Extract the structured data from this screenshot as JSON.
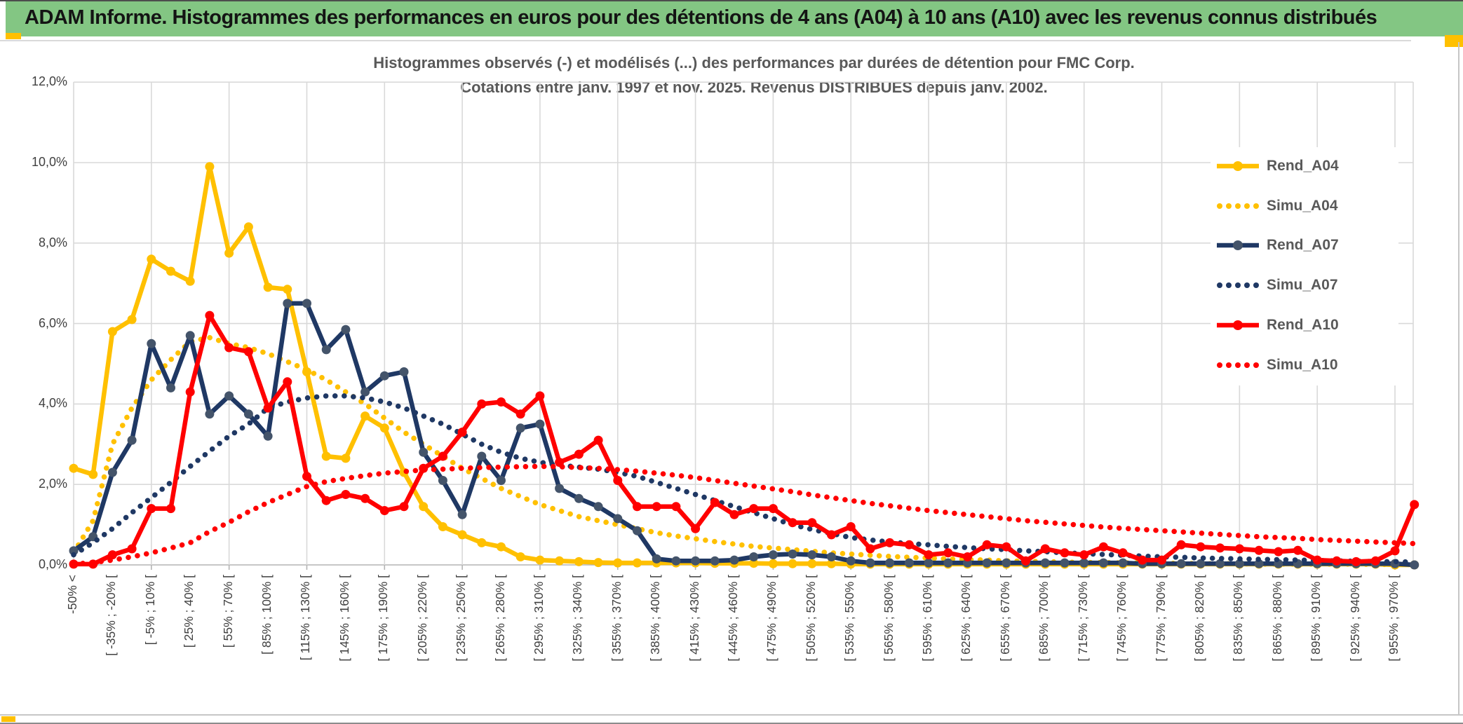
{
  "banner": {
    "title": "ADAM Informe. Histogrammes des performances en euros pour des détentions de 4 ans (A04) à 10 ans (A10) avec les revenus connus distribués",
    "bg_color": "#83C683",
    "accent_color": "#FFC000"
  },
  "chart": {
    "title_line1": "Histogrammes observés (-) et modélisés (...) des performances par durées de détention pour FMC Corp.",
    "title_line2": "Cotations entre janv. 1997 et nov. 2025. Revenus DISTRIBUES depuis janv. 2002."
  },
  "legend": {
    "items": [
      {
        "label": "Rend_A04",
        "color": "#FFC000",
        "marker_color": "#FFC000",
        "style": "solid"
      },
      {
        "label": "Simu_A04",
        "color": "#FFC000",
        "marker_color": "#FFC000",
        "style": "dotted"
      },
      {
        "label": "Rend_A07",
        "color": "#1F3864",
        "marker_color": "#44546A",
        "style": "solid"
      },
      {
        "label": "Simu_A07",
        "color": "#1F3864",
        "marker_color": "#1F3864",
        "style": "dotted"
      },
      {
        "label": "Rend_A10",
        "color": "#FF0000",
        "marker_color": "#FF0000",
        "style": "solid"
      },
      {
        "label": "Simu_A10",
        "color": "#FF0000",
        "marker_color": "#FF0000",
        "style": "dotted"
      }
    ]
  },
  "chart_data": {
    "type": "line",
    "title": "Histogrammes observés (-) et modélisés (...) des performances par durées de détention pour FMC Corp. Cotations entre janv. 1997 et nov. 2025. Revenus DISTRIBUES depuis janv. 2002.",
    "xlabel": "",
    "ylabel": "",
    "ylim": [
      0,
      12
    ],
    "y_tick_step": 2,
    "y_tick_labels": [
      "12,0%",
      "10,0%",
      "8,0%",
      "6,0%",
      "4,0%",
      "2,0%",
      "0,0%"
    ],
    "grid": true,
    "legend_position": "right-inside",
    "n_points": 70,
    "x_label_every_n_bins": 2,
    "x_tick_labels": [
      "-50% <",
      "[ -35% ; -20% [",
      "[ -5% ; 10% [",
      "[ 25% ; 40% [",
      "[ 55% ; 70% [",
      "[ 85% ; 100% [",
      "[ 115% ; 130% [",
      "[ 145% ; 160% [",
      "[ 175% ; 190% [",
      "[ 205% ; 220% [",
      "[ 235% ; 250% [",
      "[ 265% ; 280% [",
      "[ 295% ; 310% [",
      "[ 325% ; 340% [",
      "[ 355% ; 370% [",
      "[ 385% ; 400% [",
      "[ 415% ; 430% [",
      "[ 445% ; 460% [",
      "[ 475% ; 490% [",
      "[ 505% ; 520% [",
      "[ 535% ; 550% [",
      "[ 565% ; 580% [",
      "[ 595% ; 610% [",
      "[ 625% ; 640% [",
      "[ 655% ; 670% [",
      "[ 685% ; 700% [",
      "[ 715% ; 730% [",
      "[ 745% ; 760% [",
      "[ 775% ; 790% [",
      "[ 805% ; 820% [",
      "[ 835% ; 850% [",
      "[ 865% ; 880% [",
      "[ 895% ; 910% [",
      "[ 925% ; 940% [",
      "[ 955% ; 970% ["
    ],
    "series": [
      {
        "name": "Rend_A04",
        "style": "solid",
        "color": "#FFC000",
        "marker_color": "#FFC000",
        "values": [
          2.4,
          2.25,
          5.8,
          6.1,
          7.6,
          7.3,
          7.05,
          9.9,
          7.75,
          8.4,
          6.9,
          6.85,
          4.8,
          2.7,
          2.65,
          3.7,
          3.4,
          2.3,
          1.45,
          0.95,
          0.75,
          0.55,
          0.45,
          0.2,
          0.12,
          0.1,
          0.08,
          0.06,
          0.05,
          0.05,
          0.05,
          0.05,
          0.05,
          0.04,
          0.04,
          0.04,
          0.03,
          0.03,
          0.03,
          0.03,
          0.02,
          0.02,
          0.02,
          0.02,
          0.02,
          0.02,
          0.02,
          0.02,
          0.02,
          0.02,
          0.02,
          0.02,
          0.02,
          0.02,
          0.02,
          0.02,
          0.02,
          0.02,
          0.02,
          0.02,
          0.02,
          0.02,
          0.02,
          0.02,
          0.02,
          0.02,
          0.02,
          0.02,
          0,
          0
        ]
      },
      {
        "name": "Simu_A04",
        "style": "dotted",
        "color": "#FFC000",
        "values": [
          0.3,
          1.1,
          3.0,
          3.9,
          4.6,
          5.1,
          5.55,
          5.65,
          5.5,
          5.4,
          5.25,
          5.05,
          4.85,
          4.6,
          4.3,
          4.0,
          3.65,
          3.3,
          3.0,
          2.7,
          2.4,
          2.15,
          1.9,
          1.7,
          1.5,
          1.35,
          1.2,
          1.1,
          1.0,
          0.9,
          0.8,
          0.72,
          0.65,
          0.58,
          0.52,
          0.46,
          0.42,
          0.38,
          0.34,
          0.3,
          0.27,
          0.24,
          0.21,
          0.19,
          0.17,
          0.15,
          0.13,
          0.12,
          0.1,
          0.09,
          0.08,
          0.07,
          0.06,
          0.06,
          0.05,
          0.05,
          0.04,
          0.04,
          0.03,
          0.03,
          0.03,
          0.02,
          0.02,
          0.02,
          0.02,
          0.02,
          0.02,
          0.01,
          0.01,
          0.01
        ]
      },
      {
        "name": "Rend_A07",
        "style": "solid",
        "color": "#1F3864",
        "marker_color": "#44546A",
        "values": [
          0.35,
          0.7,
          2.3,
          3.1,
          5.5,
          4.4,
          5.7,
          3.75,
          4.2,
          3.75,
          3.2,
          6.5,
          6.5,
          5.35,
          5.85,
          4.3,
          4.7,
          4.8,
          2.8,
          2.1,
          1.25,
          2.7,
          2.1,
          3.4,
          3.5,
          1.9,
          1.65,
          1.45,
          1.15,
          0.85,
          0.15,
          0.1,
          0.1,
          0.1,
          0.12,
          0.2,
          0.25,
          0.27,
          0.25,
          0.2,
          0.1,
          0.05,
          0.05,
          0.05,
          0.05,
          0.05,
          0.05,
          0.05,
          0.05,
          0.05,
          0.05,
          0.05,
          0.05,
          0.05,
          0.05,
          0.03,
          0.03,
          0.03,
          0.03,
          0.03,
          0.03,
          0.03,
          0.03,
          0.03,
          0.03,
          0.03,
          0.03,
          0.03,
          0.03,
          0
        ]
      },
      {
        "name": "Simu_A07",
        "style": "dotted",
        "color": "#1F3864",
        "values": [
          0.25,
          0.55,
          0.9,
          1.3,
          1.67,
          2.05,
          2.45,
          2.83,
          3.2,
          3.5,
          3.9,
          4.05,
          4.15,
          4.2,
          4.2,
          4.15,
          4.05,
          3.9,
          3.7,
          3.5,
          3.25,
          3.0,
          2.8,
          2.65,
          2.55,
          2.48,
          2.43,
          2.38,
          2.3,
          2.2,
          2.05,
          1.9,
          1.75,
          1.6,
          1.45,
          1.3,
          1.15,
          1.0,
          0.88,
          0.78,
          0.68,
          0.62,
          0.57,
          0.53,
          0.5,
          0.46,
          0.43,
          0.4,
          0.38,
          0.35,
          0.33,
          0.3,
          0.28,
          0.26,
          0.24,
          0.22,
          0.2,
          0.19,
          0.17,
          0.16,
          0.15,
          0.14,
          0.13,
          0.12,
          0.11,
          0.1,
          0.09,
          0.08,
          0.08,
          0.07
        ]
      },
      {
        "name": "Rend_A10",
        "style": "solid",
        "color": "#FF0000",
        "marker_color": "#FF0000",
        "values": [
          0.02,
          0.02,
          0.25,
          0.4,
          1.4,
          1.4,
          4.3,
          6.2,
          5.4,
          5.3,
          3.9,
          4.55,
          2.2,
          1.6,
          1.75,
          1.65,
          1.35,
          1.45,
          2.4,
          2.7,
          3.3,
          4.0,
          4.05,
          3.75,
          4.2,
          2.55,
          2.75,
          3.1,
          2.1,
          1.45,
          1.45,
          1.45,
          0.9,
          1.55,
          1.25,
          1.4,
          1.4,
          1.05,
          1.05,
          0.75,
          0.95,
          0.4,
          0.55,
          0.5,
          0.25,
          0.3,
          0.2,
          0.5,
          0.45,
          0.1,
          0.4,
          0.3,
          0.25,
          0.45,
          0.3,
          0.12,
          0.12,
          0.5,
          0.45,
          0.42,
          0.4,
          0.36,
          0.33,
          0.36,
          0.12,
          0.1,
          0.08,
          0.1,
          0.35,
          1.5
        ]
      },
      {
        "name": "Simu_A10",
        "style": "dotted",
        "color": "#FF0000",
        "values": [
          0.02,
          0.06,
          0.12,
          0.2,
          0.3,
          0.42,
          0.55,
          0.83,
          1.06,
          1.32,
          1.55,
          1.75,
          1.95,
          2.07,
          2.15,
          2.22,
          2.28,
          2.32,
          2.36,
          2.38,
          2.4,
          2.42,
          2.43,
          2.44,
          2.45,
          2.44,
          2.42,
          2.4,
          2.37,
          2.33,
          2.28,
          2.23,
          2.17,
          2.1,
          2.03,
          1.96,
          1.89,
          1.82,
          1.74,
          1.67,
          1.6,
          1.53,
          1.47,
          1.41,
          1.35,
          1.3,
          1.25,
          1.2,
          1.15,
          1.1,
          1.06,
          1.02,
          0.98,
          0.94,
          0.91,
          0.88,
          0.85,
          0.82,
          0.79,
          0.76,
          0.73,
          0.7,
          0.68,
          0.66,
          0.63,
          0.61,
          0.59,
          0.57,
          0.55,
          0.53
        ]
      }
    ],
    "colors": {
      "gridline": "#D9D9D9",
      "axis_line": "#B3B3B3",
      "axis_text": "#404040",
      "title_text": "#595959"
    }
  }
}
